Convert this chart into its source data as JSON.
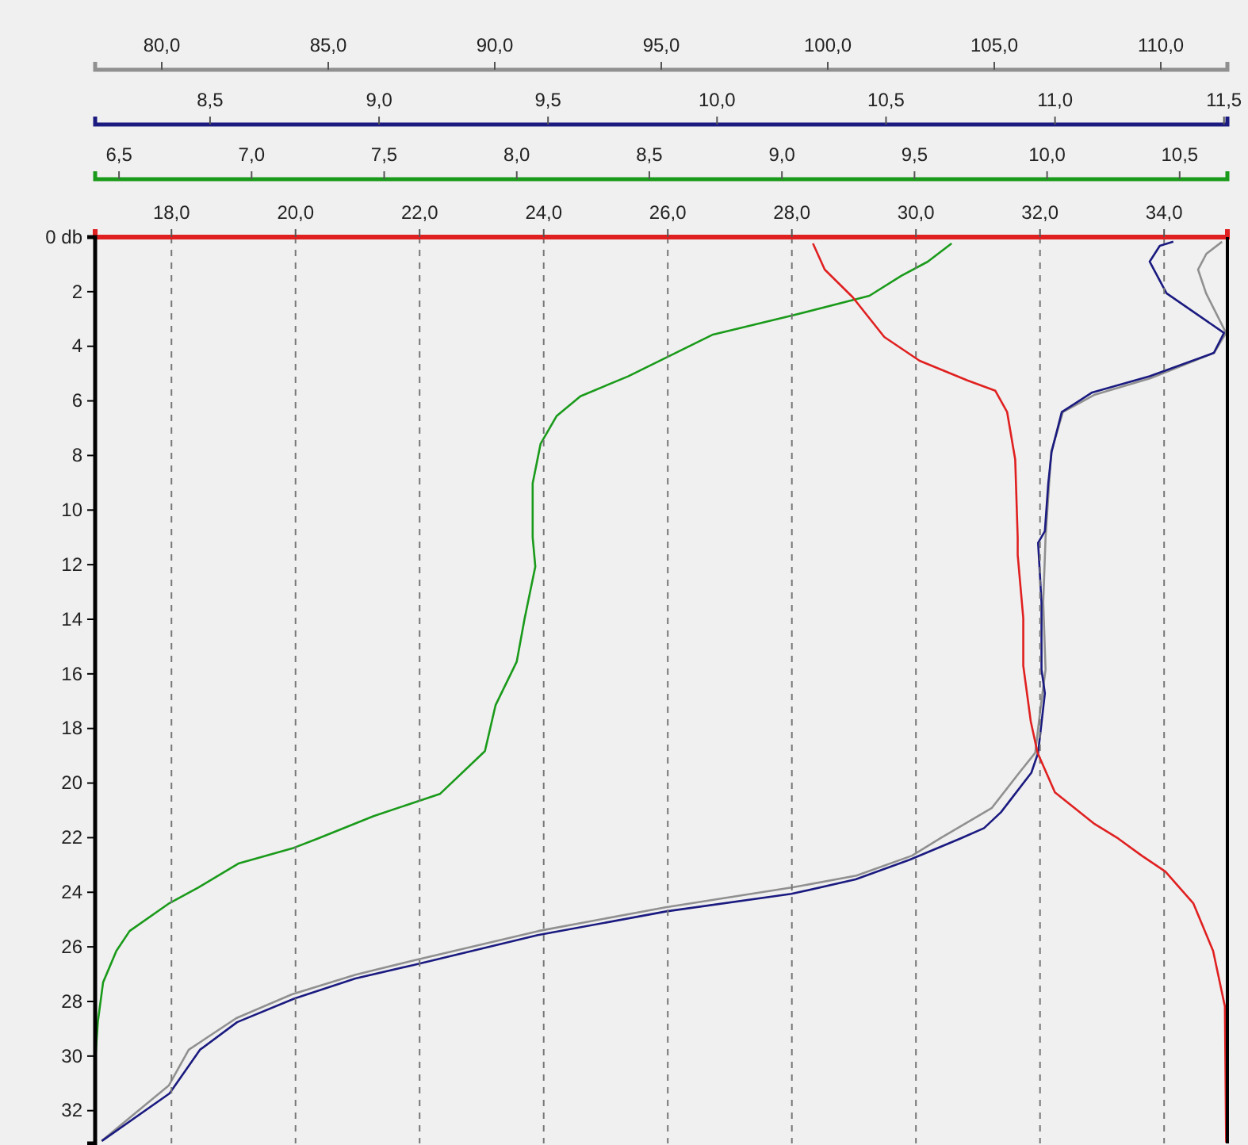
{
  "chart_data": [
    {
      "type": "line",
      "tick_labels": "x",
      "ylim": [
        33.2,
        0
      ],
      "xlim": [
        78,
        112
      ],
      "xticks": [
        {
          "value": 80,
          "label": "80,0"
        },
        {
          "value": 85,
          "label": "85,0"
        },
        {
          "value": 90,
          "label": "90,0"
        },
        {
          "value": 95,
          "label": "95,0"
        },
        {
          "value": 100,
          "label": "100,0"
        },
        {
          "value": 105,
          "label": "105,0"
        },
        {
          "value": 110,
          "label": "110,0"
        }
      ],
      "series": [
        {
          "color": "#909090",
          "x": [
            111.84,
            111.37,
            111.12,
            111.36,
            111.96,
            111.6,
            109.69,
            108.02,
            107.06,
            106.71,
            106.54,
            106.47,
            106.54,
            106.4,
            106.23,
            105.75,
            104.92,
            103.37,
            102.53,
            100.86,
            98.95,
            95.13,
            91.31,
            87.49,
            85.82,
            83.91,
            82.24,
            80.81,
            80.21,
            78.19
          ],
          "values": [
            0.17,
            0.61,
            1.19,
            2.06,
            3.51,
            4.24,
            5.17,
            5.77,
            6.41,
            7.86,
            11.0,
            13.38,
            15.84,
            17.15,
            18.89,
            19.62,
            20.92,
            22.03,
            22.66,
            23.39,
            23.82,
            24.55,
            25.42,
            26.52,
            27.02,
            27.74,
            28.61,
            29.77,
            31.08,
            33.11
          ]
        }
      ]
    },
    {
      "type": "line",
      "tick_labels": "x",
      "ylim": [
        33.2,
        0
      ],
      "xlim": [
        8.16,
        11.51
      ],
      "xticks": [
        {
          "value": 8.5,
          "label": "8,5"
        },
        {
          "value": 9,
          "label": "9,0"
        },
        {
          "value": 9.5,
          "label": "9,5"
        },
        {
          "value": 10,
          "label": "10,0"
        },
        {
          "value": 10.5,
          "label": "10,5"
        },
        {
          "value": 11,
          "label": "11,0"
        },
        {
          "value": 11.5,
          "label": "11,5"
        }
      ],
      "series": [
        {
          "color": "#1a1a80",
          "x": [
            11.35,
            11.31,
            11.28,
            11.33,
            11.5,
            11.47,
            11.28,
            11.11,
            11.02,
            10.99,
            10.98,
            10.97,
            10.95,
            10.96,
            10.96,
            10.97,
            10.95,
            10.93,
            10.84,
            10.79,
            10.72,
            10.57,
            10.41,
            10.22,
            9.85,
            9.47,
            9.1,
            8.93,
            8.75,
            8.58,
            8.47,
            8.38,
            8.18
          ],
          "values": [
            0.17,
            0.32,
            0.9,
            2.06,
            3.51,
            4.24,
            5.1,
            5.69,
            6.41,
            7.86,
            9.02,
            10.77,
            11.2,
            13.38,
            15.84,
            16.71,
            18.89,
            19.62,
            21.07,
            21.65,
            22.03,
            22.81,
            23.53,
            24.06,
            24.7,
            25.57,
            26.67,
            27.16,
            27.89,
            28.76,
            29.77,
            31.37,
            33.11
          ]
        }
      ]
    },
    {
      "type": "line",
      "tick_labels": "x",
      "ylim": [
        33.2,
        0
      ],
      "xlim": [
        6.41,
        10.68
      ],
      "xticks": [
        {
          "value": 6.5,
          "label": "6,5"
        },
        {
          "value": 7,
          "label": "7,0"
        },
        {
          "value": 7.5,
          "label": "7,5"
        },
        {
          "value": 8,
          "label": "8,0"
        },
        {
          "value": 8.5,
          "label": "8,5"
        },
        {
          "value": 9,
          "label": "9,0"
        },
        {
          "value": 9.5,
          "label": "9,5"
        },
        {
          "value": 10,
          "label": "10,0"
        },
        {
          "value": 10.5,
          "label": "10,5"
        }
      ],
      "series": [
        {
          "color": "#1a9a1a",
          "x": [
            9.64,
            9.55,
            9.45,
            9.33,
            9.04,
            8.74,
            8.42,
            8.24,
            8.15,
            8.09,
            8.06,
            8.06,
            8.07,
            8.03,
            8.0,
            7.92,
            7.88,
            7.71,
            7.46,
            7.25,
            7.16,
            6.95,
            6.8,
            6.69,
            6.54,
            6.49,
            6.44,
            6.42,
            6.41
          ],
          "values": [
            0.23,
            0.9,
            1.42,
            2.15,
            2.87,
            3.57,
            5.1,
            5.83,
            6.56,
            7.57,
            9.02,
            11.0,
            12.07,
            13.96,
            15.55,
            17.15,
            18.83,
            20.4,
            21.21,
            22.03,
            22.37,
            22.95,
            23.82,
            24.4,
            25.42,
            26.15,
            27.3,
            28.76,
            30.2
          ]
        }
      ]
    },
    {
      "type": "line",
      "grid": "x",
      "ylim": [
        33.2,
        0
      ],
      "xlim": [
        16.77,
        35.02
      ],
      "xticks": [
        {
          "value": 18,
          "label": "18,0"
        },
        {
          "value": 20,
          "label": "20,0"
        },
        {
          "value": 22,
          "label": "22,0"
        },
        {
          "value": 24,
          "label": "24,0"
        },
        {
          "value": 26,
          "label": "26,0"
        },
        {
          "value": 28,
          "label": "28,0"
        },
        {
          "value": 30,
          "label": "30,0"
        },
        {
          "value": 32,
          "label": "32,0"
        },
        {
          "value": 34,
          "label": "34,0"
        }
      ],
      "yticks": [
        {
          "value": 0,
          "label": "0 db"
        },
        2,
        4,
        6,
        8,
        10,
        12,
        14,
        16,
        18,
        20,
        22,
        24,
        26,
        28,
        30,
        32
      ],
      "series": [
        {
          "color": "#e02020",
          "x": [
            28.34,
            28.53,
            28.98,
            29.49,
            30.06,
            30.83,
            31.28,
            31.47,
            31.6,
            31.64,
            31.64,
            31.73,
            31.73,
            31.85,
            31.96,
            32.24,
            32.88,
            33.26,
            33.64,
            34.02,
            34.47,
            34.79,
            34.98,
            35.0
          ],
          "values": [
            0.23,
            1.19,
            2.2,
            3.66,
            4.53,
            5.25,
            5.63,
            6.41,
            8.15,
            11.0,
            11.64,
            13.96,
            15.7,
            17.73,
            18.89,
            20.34,
            21.5,
            22.03,
            22.66,
            23.24,
            24.4,
            26.15,
            28.18,
            33.17
          ]
        }
      ]
    }
  ]
}
